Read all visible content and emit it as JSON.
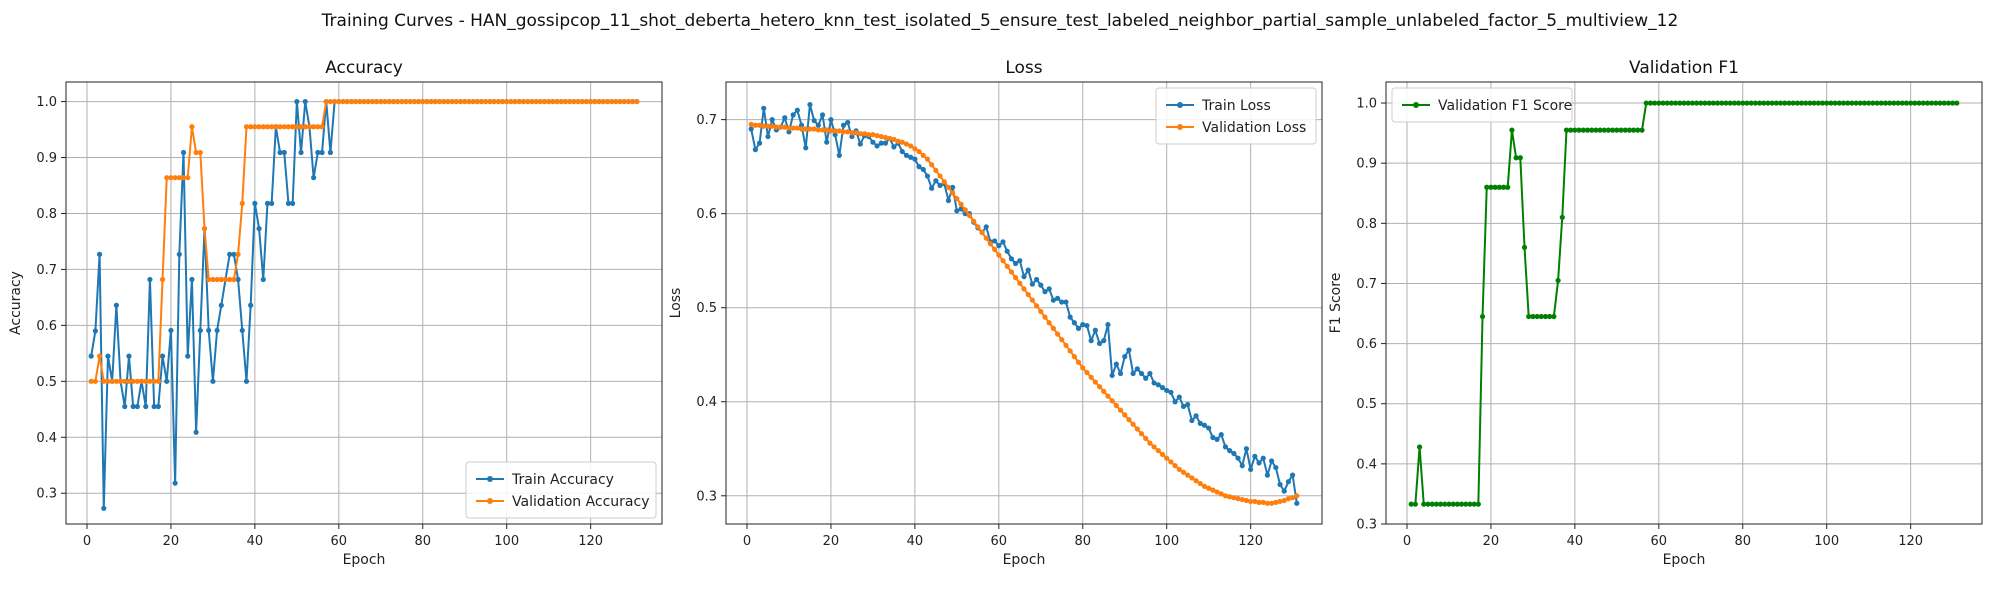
{
  "figure": {
    "suptitle": "Training Curves - HAN_gossipcop_11_shot_deberta_hetero_knn_test_isolated_5_ensure_test_labeled_neighbor_partial_sample_unlabeled_factor_5_multiview_12"
  },
  "colors": {
    "blue": "#1f77b4",
    "orange": "#ff7f0e",
    "green": "#008000",
    "grid": "#b0b0b0"
  },
  "chart_data": [
    {
      "type": "line",
      "title": "Accuracy",
      "xlabel": "Epoch",
      "ylabel": "Accuracy",
      "xlim": [
        -5,
        137
      ],
      "ylim": [
        0.245,
        1.035
      ],
      "xticks": [
        0,
        20,
        40,
        60,
        80,
        100,
        120
      ],
      "yticks": [
        0.3,
        0.4,
        0.5,
        0.6,
        0.7,
        0.8,
        0.9,
        1.0
      ],
      "grid": true,
      "legend": "lower-right",
      "series": [
        {
          "name": "Train Accuracy",
          "color": "#1f77b4",
          "x_start": 1,
          "values": [
            0.545,
            0.59,
            0.727,
            0.273,
            0.545,
            0.5,
            0.636,
            0.5,
            0.455,
            0.545,
            0.455,
            0.455,
            0.5,
            0.455,
            0.682,
            0.455,
            0.455,
            0.545,
            0.5,
            0.591,
            0.318,
            0.727,
            0.909,
            0.545,
            0.682,
            0.409,
            0.591,
            0.773,
            0.591,
            0.5,
            0.591,
            0.636,
            0.682,
            0.727,
            0.727,
            0.682,
            0.591,
            0.5,
            0.636,
            0.818,
            0.773,
            0.682,
            0.818,
            0.818,
            0.955,
            0.909,
            0.909,
            0.818,
            0.818,
            1.0,
            0.909,
            1.0,
            0.955,
            0.864,
            0.909,
            0.909,
            1.0,
            0.909,
            1.0,
            1.0,
            1.0,
            1.0,
            1.0,
            1.0,
            1.0,
            1.0,
            1.0,
            1.0,
            1.0,
            1.0,
            1.0,
            1.0,
            1.0,
            1.0,
            1.0,
            1.0,
            1.0,
            1.0,
            1.0,
            1.0,
            1.0,
            1.0,
            1.0,
            1.0,
            1.0,
            1.0,
            1.0,
            1.0,
            1.0,
            1.0,
            1.0,
            1.0,
            1.0,
            1.0,
            1.0,
            1.0,
            1.0,
            1.0,
            1.0,
            1.0,
            1.0,
            1.0,
            1.0,
            1.0,
            1.0,
            1.0,
            1.0,
            1.0,
            1.0,
            1.0,
            1.0,
            1.0,
            1.0,
            1.0,
            1.0,
            1.0,
            1.0,
            1.0,
            1.0,
            1.0,
            1.0,
            1.0,
            1.0,
            1.0,
            1.0,
            1.0,
            1.0,
            1.0,
            1.0,
            1.0,
            1.0
          ]
        },
        {
          "name": "Validation Accuracy",
          "color": "#ff7f0e",
          "x_start": 1,
          "values": [
            0.5,
            0.5,
            0.545,
            0.5,
            0.5,
            0.5,
            0.5,
            0.5,
            0.5,
            0.5,
            0.5,
            0.5,
            0.5,
            0.5,
            0.5,
            0.5,
            0.5,
            0.682,
            0.864,
            0.864,
            0.864,
            0.864,
            0.864,
            0.864,
            0.955,
            0.909,
            0.909,
            0.773,
            0.682,
            0.682,
            0.682,
            0.682,
            0.682,
            0.682,
            0.682,
            0.727,
            0.818,
            0.955,
            0.955,
            0.955,
            0.955,
            0.955,
            0.955,
            0.955,
            0.955,
            0.955,
            0.955,
            0.955,
            0.955,
            0.955,
            0.955,
            0.955,
            0.955,
            0.955,
            0.955,
            0.955,
            1.0,
            1.0,
            1.0,
            1.0,
            1.0,
            1.0,
            1.0,
            1.0,
            1.0,
            1.0,
            1.0,
            1.0,
            1.0,
            1.0,
            1.0,
            1.0,
            1.0,
            1.0,
            1.0,
            1.0,
            1.0,
            1.0,
            1.0,
            1.0,
            1.0,
            1.0,
            1.0,
            1.0,
            1.0,
            1.0,
            1.0,
            1.0,
            1.0,
            1.0,
            1.0,
            1.0,
            1.0,
            1.0,
            1.0,
            1.0,
            1.0,
            1.0,
            1.0,
            1.0,
            1.0,
            1.0,
            1.0,
            1.0,
            1.0,
            1.0,
            1.0,
            1.0,
            1.0,
            1.0,
            1.0,
            1.0,
            1.0,
            1.0,
            1.0,
            1.0,
            1.0,
            1.0,
            1.0,
            1.0,
            1.0,
            1.0,
            1.0,
            1.0,
            1.0,
            1.0,
            1.0,
            1.0,
            1.0,
            1.0,
            1.0
          ]
        }
      ]
    },
    {
      "type": "line",
      "title": "Loss",
      "xlabel": "Epoch",
      "ylabel": "Loss",
      "xlim": [
        -5,
        137
      ],
      "ylim": [
        0.27,
        0.74
      ],
      "xticks": [
        0,
        20,
        40,
        60,
        80,
        100,
        120
      ],
      "yticks": [
        0.3,
        0.4,
        0.5,
        0.6,
        0.7
      ],
      "grid": true,
      "legend": "top-right",
      "series": [
        {
          "name": "Train Loss",
          "color": "#1f77b4",
          "x_start": 1,
          "values": [
            0.69,
            0.668,
            0.675,
            0.712,
            0.682,
            0.7,
            0.689,
            0.692,
            0.702,
            0.687,
            0.705,
            0.71,
            0.694,
            0.67,
            0.716,
            0.699,
            0.694,
            0.705,
            0.676,
            0.7,
            0.684,
            0.662,
            0.694,
            0.697,
            0.682,
            0.688,
            0.674,
            0.683,
            0.682,
            0.676,
            0.672,
            0.675,
            0.675,
            0.68,
            0.671,
            0.675,
            0.666,
            0.662,
            0.66,
            0.658,
            0.65,
            0.647,
            0.64,
            0.627,
            0.635,
            0.63,
            0.632,
            0.614,
            0.628,
            0.603,
            0.605,
            0.6,
            0.6,
            0.591,
            0.585,
            0.58,
            0.586,
            0.57,
            0.571,
            0.566,
            0.57,
            0.56,
            0.552,
            0.547,
            0.55,
            0.533,
            0.54,
            0.525,
            0.53,
            0.524,
            0.517,
            0.52,
            0.508,
            0.51,
            0.506,
            0.506,
            0.49,
            0.484,
            0.478,
            0.482,
            0.481,
            0.465,
            0.476,
            0.462,
            0.465,
            0.482,
            0.428,
            0.44,
            0.43,
            0.448,
            0.455,
            0.43,
            0.435,
            0.43,
            0.425,
            0.43,
            0.42,
            0.418,
            0.415,
            0.412,
            0.41,
            0.4,
            0.405,
            0.395,
            0.397,
            0.38,
            0.385,
            0.377,
            0.375,
            0.372,
            0.362,
            0.36,
            0.365,
            0.352,
            0.348,
            0.345,
            0.34,
            0.332,
            0.35,
            0.328,
            0.342,
            0.335,
            0.34,
            0.322,
            0.337,
            0.33,
            0.312,
            0.305,
            0.315,
            0.322,
            0.292
          ]
        },
        {
          "name": "Validation Loss",
          "color": "#ff7f0e",
          "x_start": 1,
          "values": [
            0.695,
            0.694,
            0.694,
            0.693,
            0.693,
            0.693,
            0.692,
            0.692,
            0.692,
            0.691,
            0.691,
            0.691,
            0.69,
            0.69,
            0.69,
            0.69,
            0.689,
            0.689,
            0.689,
            0.688,
            0.688,
            0.688,
            0.687,
            0.687,
            0.686,
            0.686,
            0.685,
            0.685,
            0.684,
            0.684,
            0.683,
            0.682,
            0.681,
            0.68,
            0.679,
            0.677,
            0.676,
            0.674,
            0.672,
            0.669,
            0.666,
            0.662,
            0.658,
            0.652,
            0.646,
            0.64,
            0.634,
            0.628,
            0.622,
            0.616,
            0.61,
            0.604,
            0.598,
            0.592,
            0.586,
            0.58,
            0.574,
            0.568,
            0.562,
            0.556,
            0.55,
            0.544,
            0.538,
            0.532,
            0.526,
            0.52,
            0.514,
            0.508,
            0.502,
            0.496,
            0.49,
            0.484,
            0.478,
            0.472,
            0.466,
            0.46,
            0.454,
            0.448,
            0.442,
            0.436,
            0.431,
            0.426,
            0.421,
            0.416,
            0.411,
            0.406,
            0.401,
            0.396,
            0.391,
            0.386,
            0.381,
            0.376,
            0.371,
            0.366,
            0.361,
            0.356,
            0.352,
            0.348,
            0.344,
            0.34,
            0.336,
            0.332,
            0.328,
            0.325,
            0.322,
            0.319,
            0.316,
            0.313,
            0.31,
            0.308,
            0.306,
            0.304,
            0.302,
            0.3,
            0.299,
            0.298,
            0.297,
            0.296,
            0.295,
            0.294,
            0.294,
            0.293,
            0.293,
            0.292,
            0.292,
            0.293,
            0.294,
            0.295,
            0.297,
            0.298,
            0.3
          ]
        }
      ]
    },
    {
      "type": "line",
      "title": "Validation F1",
      "xlabel": "Epoch",
      "ylabel": "F1 Score",
      "xlim": [
        -5,
        137
      ],
      "ylim": [
        0.3,
        1.035
      ],
      "xticks": [
        0,
        20,
        40,
        60,
        80,
        100,
        120
      ],
      "yticks": [
        0.3,
        0.4,
        0.5,
        0.6,
        0.7,
        0.8,
        0.9,
        1.0
      ],
      "grid": true,
      "legend": "top-left",
      "series": [
        {
          "name": "Validation F1 Score",
          "color": "#008000",
          "x_start": 1,
          "values": [
            0.333,
            0.333,
            0.428,
            0.333,
            0.333,
            0.333,
            0.333,
            0.333,
            0.333,
            0.333,
            0.333,
            0.333,
            0.333,
            0.333,
            0.333,
            0.333,
            0.333,
            0.645,
            0.86,
            0.86,
            0.86,
            0.86,
            0.86,
            0.86,
            0.955,
            0.909,
            0.909,
            0.76,
            0.645,
            0.645,
            0.645,
            0.645,
            0.645,
            0.645,
            0.645,
            0.705,
            0.81,
            0.955,
            0.955,
            0.955,
            0.955,
            0.955,
            0.955,
            0.955,
            0.955,
            0.955,
            0.955,
            0.955,
            0.955,
            0.955,
            0.955,
            0.955,
            0.955,
            0.955,
            0.955,
            0.955,
            1.0,
            1.0,
            1.0,
            1.0,
            1.0,
            1.0,
            1.0,
            1.0,
            1.0,
            1.0,
            1.0,
            1.0,
            1.0,
            1.0,
            1.0,
            1.0,
            1.0,
            1.0,
            1.0,
            1.0,
            1.0,
            1.0,
            1.0,
            1.0,
            1.0,
            1.0,
            1.0,
            1.0,
            1.0,
            1.0,
            1.0,
            1.0,
            1.0,
            1.0,
            1.0,
            1.0,
            1.0,
            1.0,
            1.0,
            1.0,
            1.0,
            1.0,
            1.0,
            1.0,
            1.0,
            1.0,
            1.0,
            1.0,
            1.0,
            1.0,
            1.0,
            1.0,
            1.0,
            1.0,
            1.0,
            1.0,
            1.0,
            1.0,
            1.0,
            1.0,
            1.0,
            1.0,
            1.0,
            1.0,
            1.0,
            1.0,
            1.0,
            1.0,
            1.0,
            1.0,
            1.0,
            1.0,
            1.0,
            1.0,
            1.0
          ]
        }
      ]
    }
  ]
}
